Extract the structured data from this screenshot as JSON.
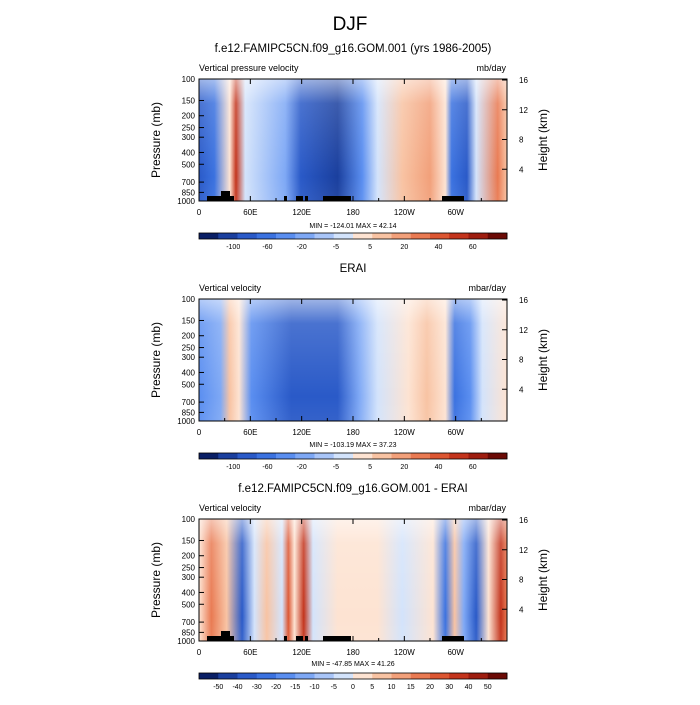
{
  "figure": {
    "title": "DJF"
  },
  "chart_data": [
    {
      "type": "heatmap",
      "title": "f.e12.FAMIPC5CN.f09_g16.GOM.001 (yrs 1986-2005)",
      "left_label": "Vertical pressure velocity",
      "right_label": "mb/day",
      "ylabel": "Pressure (mb)",
      "right_axis_label": "Height (km)",
      "y_ticks": [
        "100",
        "150",
        "200",
        "250",
        "300",
        "400",
        "500",
        "700",
        "850",
        "1000"
      ],
      "y2_ticks": [
        "16",
        "12",
        "8",
        "4"
      ],
      "x_ticks": [
        "0",
        "60E",
        "120E",
        "180",
        "120W",
        "60W"
      ],
      "stats": "MIN = -124.01  MAX =  42.14",
      "colorbar_labels": [
        "-100",
        "-60",
        "-20",
        "-5",
        "5",
        "20",
        "40",
        "60"
      ],
      "colorbar_colors": [
        "#0a1f66",
        "#1a3f9e",
        "#2a5ac8",
        "#3b72e0",
        "#5a8ef0",
        "#7ea8f5",
        "#a9c5f8",
        "#d3e3fb",
        "#fde3d2",
        "#f8c3a3",
        "#f2a07a",
        "#e97a52",
        "#dc5632",
        "#c3341c",
        "#9e1d0f",
        "#6b0a05"
      ]
    },
    {
      "type": "heatmap",
      "title": "ERAI",
      "left_label": "Vertical velocity",
      "right_label": "mbar/day",
      "ylabel": "Pressure (mb)",
      "right_axis_label": "Height (km)",
      "y_ticks": [
        "100",
        "150",
        "200",
        "250",
        "300",
        "400",
        "500",
        "700",
        "850",
        "1000"
      ],
      "y2_ticks": [
        "16",
        "12",
        "8",
        "4"
      ],
      "x_ticks": [
        "0",
        "60E",
        "120E",
        "180",
        "120W",
        "60W"
      ],
      "stats": "MIN = -103.19  MAX =  37.23",
      "colorbar_labels": [
        "-100",
        "-60",
        "-20",
        "-5",
        "5",
        "20",
        "40",
        "60"
      ],
      "colorbar_colors": [
        "#0a1f66",
        "#1a3f9e",
        "#2a5ac8",
        "#3b72e0",
        "#5a8ef0",
        "#7ea8f5",
        "#a9c5f8",
        "#d3e3fb",
        "#fde3d2",
        "#f8c3a3",
        "#f2a07a",
        "#e97a52",
        "#dc5632",
        "#c3341c",
        "#9e1d0f",
        "#6b0a05"
      ]
    },
    {
      "type": "heatmap",
      "title": "f.e12.FAMIPC5CN.f09_g16.GOM.001 - ERAI",
      "left_label": "Vertical velocity",
      "right_label": "mbar/day",
      "ylabel": "Pressure (mb)",
      "right_axis_label": "Height (km)",
      "y_ticks": [
        "100",
        "150",
        "200",
        "250",
        "300",
        "400",
        "500",
        "700",
        "850",
        "1000"
      ],
      "y2_ticks": [
        "16",
        "12",
        "8",
        "4"
      ],
      "x_ticks": [
        "0",
        "60E",
        "120E",
        "180",
        "120W",
        "60W"
      ],
      "stats": "MIN = -47.85  MAX =  41.26",
      "colorbar_labels": [
        "-50",
        "-40",
        "-30",
        "-20",
        "-15",
        "-10",
        "-5",
        "0",
        "5",
        "10",
        "15",
        "20",
        "30",
        "40",
        "50"
      ],
      "colorbar_colors": [
        "#0a1f66",
        "#1a3f9e",
        "#2a5ac8",
        "#3b72e0",
        "#5a8ef0",
        "#7ea8f5",
        "#a9c5f8",
        "#d3e3fb",
        "#fde3d2",
        "#f8c3a3",
        "#f2a07a",
        "#e97a52",
        "#dc5632",
        "#c3341c",
        "#9e1d0f",
        "#6b0a05"
      ]
    }
  ]
}
